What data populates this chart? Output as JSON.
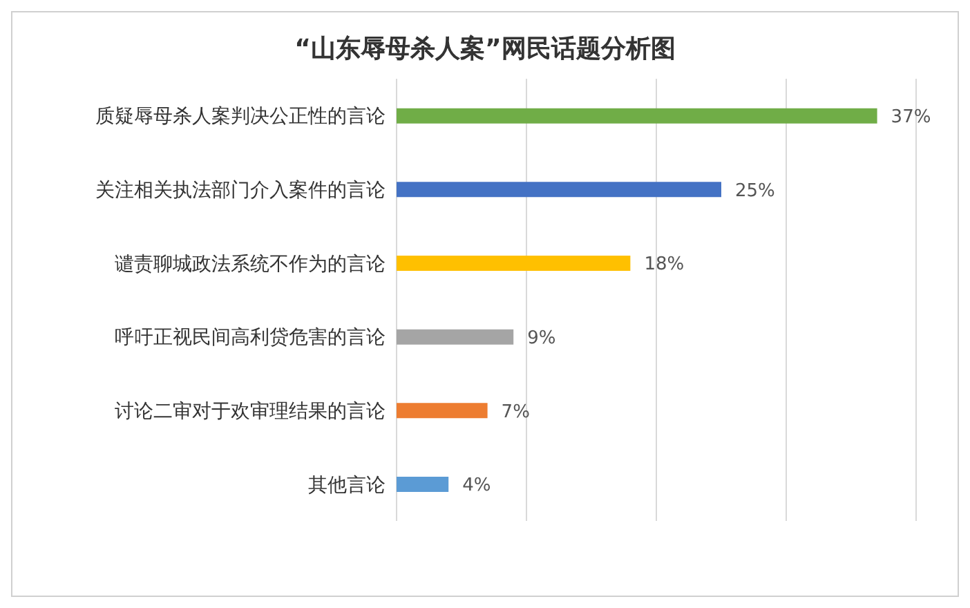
{
  "chart_data": {
    "type": "bar",
    "orientation": "horizontal",
    "title": "“山东辱母杀人案”网民话题分析图",
    "categories": [
      "质疑辱母杀人案判决公正性的言论",
      "关注相关执法部门介入案件的言论",
      "谴责聊城政法系统不作为的言论",
      "呼吁正视民间高利贷危害的言论",
      "讨论二审对于欢审理结果的言论",
      "其他言论"
    ],
    "values": [
      37,
      25,
      18,
      9,
      7,
      4
    ],
    "colors": [
      "#70ad47",
      "#4472c4",
      "#ffc000",
      "#a5a5a5",
      "#ed7d31",
      "#5b9bd5"
    ],
    "value_labels": [
      "37%",
      "25%",
      "18%",
      "9%",
      "7%",
      "4%"
    ],
    "xlim": [
      0,
      40
    ],
    "xticks": [
      {
        "value": 0,
        "label": null
      },
      {
        "value": 10,
        "label": null
      },
      {
        "value": 20,
        "label": null
      },
      {
        "value": 30,
        "label": null
      },
      {
        "value": 40,
        "label": null
      }
    ],
    "tick_labels": "y",
    "grid": "x"
  }
}
